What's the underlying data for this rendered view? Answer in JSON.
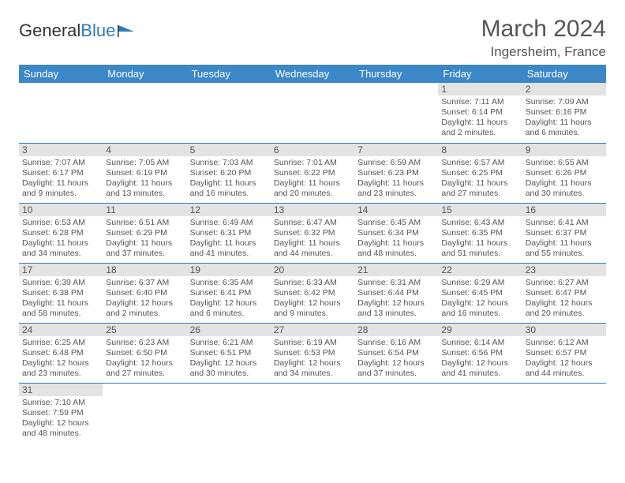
{
  "logo": {
    "text1": "General",
    "text2": "Blue"
  },
  "title": "March 2024",
  "location": "Ingersheim, France",
  "colors": {
    "header_bg": "#3b87c8",
    "header_text": "#ffffff",
    "daynum_bg": "#e3e3e3",
    "border": "#2e7bbf",
    "body_text": "#555555"
  },
  "weekdays": [
    "Sunday",
    "Monday",
    "Tuesday",
    "Wednesday",
    "Thursday",
    "Friday",
    "Saturday"
  ],
  "weeks": [
    [
      null,
      null,
      null,
      null,
      null,
      {
        "n": "1",
        "sr": "7:11 AM",
        "ss": "6:14 PM",
        "dh": "11",
        "dm": "2"
      },
      {
        "n": "2",
        "sr": "7:09 AM",
        "ss": "6:16 PM",
        "dh": "11",
        "dm": "6"
      }
    ],
    [
      {
        "n": "3",
        "sr": "7:07 AM",
        "ss": "6:17 PM",
        "dh": "11",
        "dm": "9"
      },
      {
        "n": "4",
        "sr": "7:05 AM",
        "ss": "6:19 PM",
        "dh": "11",
        "dm": "13"
      },
      {
        "n": "5",
        "sr": "7:03 AM",
        "ss": "6:20 PM",
        "dh": "11",
        "dm": "16"
      },
      {
        "n": "6",
        "sr": "7:01 AM",
        "ss": "6:22 PM",
        "dh": "11",
        "dm": "20"
      },
      {
        "n": "7",
        "sr": "6:59 AM",
        "ss": "6:23 PM",
        "dh": "11",
        "dm": "23"
      },
      {
        "n": "8",
        "sr": "6:57 AM",
        "ss": "6:25 PM",
        "dh": "11",
        "dm": "27"
      },
      {
        "n": "9",
        "sr": "6:55 AM",
        "ss": "6:26 PM",
        "dh": "11",
        "dm": "30"
      }
    ],
    [
      {
        "n": "10",
        "sr": "6:53 AM",
        "ss": "6:28 PM",
        "dh": "11",
        "dm": "34"
      },
      {
        "n": "11",
        "sr": "6:51 AM",
        "ss": "6:29 PM",
        "dh": "11",
        "dm": "37"
      },
      {
        "n": "12",
        "sr": "6:49 AM",
        "ss": "6:31 PM",
        "dh": "11",
        "dm": "41"
      },
      {
        "n": "13",
        "sr": "6:47 AM",
        "ss": "6:32 PM",
        "dh": "11",
        "dm": "44"
      },
      {
        "n": "14",
        "sr": "6:45 AM",
        "ss": "6:34 PM",
        "dh": "11",
        "dm": "48"
      },
      {
        "n": "15",
        "sr": "6:43 AM",
        "ss": "6:35 PM",
        "dh": "11",
        "dm": "51"
      },
      {
        "n": "16",
        "sr": "6:41 AM",
        "ss": "6:37 PM",
        "dh": "11",
        "dm": "55"
      }
    ],
    [
      {
        "n": "17",
        "sr": "6:39 AM",
        "ss": "6:38 PM",
        "dh": "11",
        "dm": "58"
      },
      {
        "n": "18",
        "sr": "6:37 AM",
        "ss": "6:40 PM",
        "dh": "12",
        "dm": "2"
      },
      {
        "n": "19",
        "sr": "6:35 AM",
        "ss": "6:41 PM",
        "dh": "12",
        "dm": "6"
      },
      {
        "n": "20",
        "sr": "6:33 AM",
        "ss": "6:42 PM",
        "dh": "12",
        "dm": "9"
      },
      {
        "n": "21",
        "sr": "6:31 AM",
        "ss": "6:44 PM",
        "dh": "12",
        "dm": "13"
      },
      {
        "n": "22",
        "sr": "6:29 AM",
        "ss": "6:45 PM",
        "dh": "12",
        "dm": "16"
      },
      {
        "n": "23",
        "sr": "6:27 AM",
        "ss": "6:47 PM",
        "dh": "12",
        "dm": "20"
      }
    ],
    [
      {
        "n": "24",
        "sr": "6:25 AM",
        "ss": "6:48 PM",
        "dh": "12",
        "dm": "23"
      },
      {
        "n": "25",
        "sr": "6:23 AM",
        "ss": "6:50 PM",
        "dh": "12",
        "dm": "27"
      },
      {
        "n": "26",
        "sr": "6:21 AM",
        "ss": "6:51 PM",
        "dh": "12",
        "dm": "30"
      },
      {
        "n": "27",
        "sr": "6:19 AM",
        "ss": "6:53 PM",
        "dh": "12",
        "dm": "34"
      },
      {
        "n": "28",
        "sr": "6:16 AM",
        "ss": "6:54 PM",
        "dh": "12",
        "dm": "37"
      },
      {
        "n": "29",
        "sr": "6:14 AM",
        "ss": "6:56 PM",
        "dh": "12",
        "dm": "41"
      },
      {
        "n": "30",
        "sr": "6:12 AM",
        "ss": "6:57 PM",
        "dh": "12",
        "dm": "44"
      }
    ],
    [
      {
        "n": "31",
        "sr": "7:10 AM",
        "ss": "7:59 PM",
        "dh": "12",
        "dm": "48"
      },
      null,
      null,
      null,
      null,
      null,
      null
    ]
  ]
}
